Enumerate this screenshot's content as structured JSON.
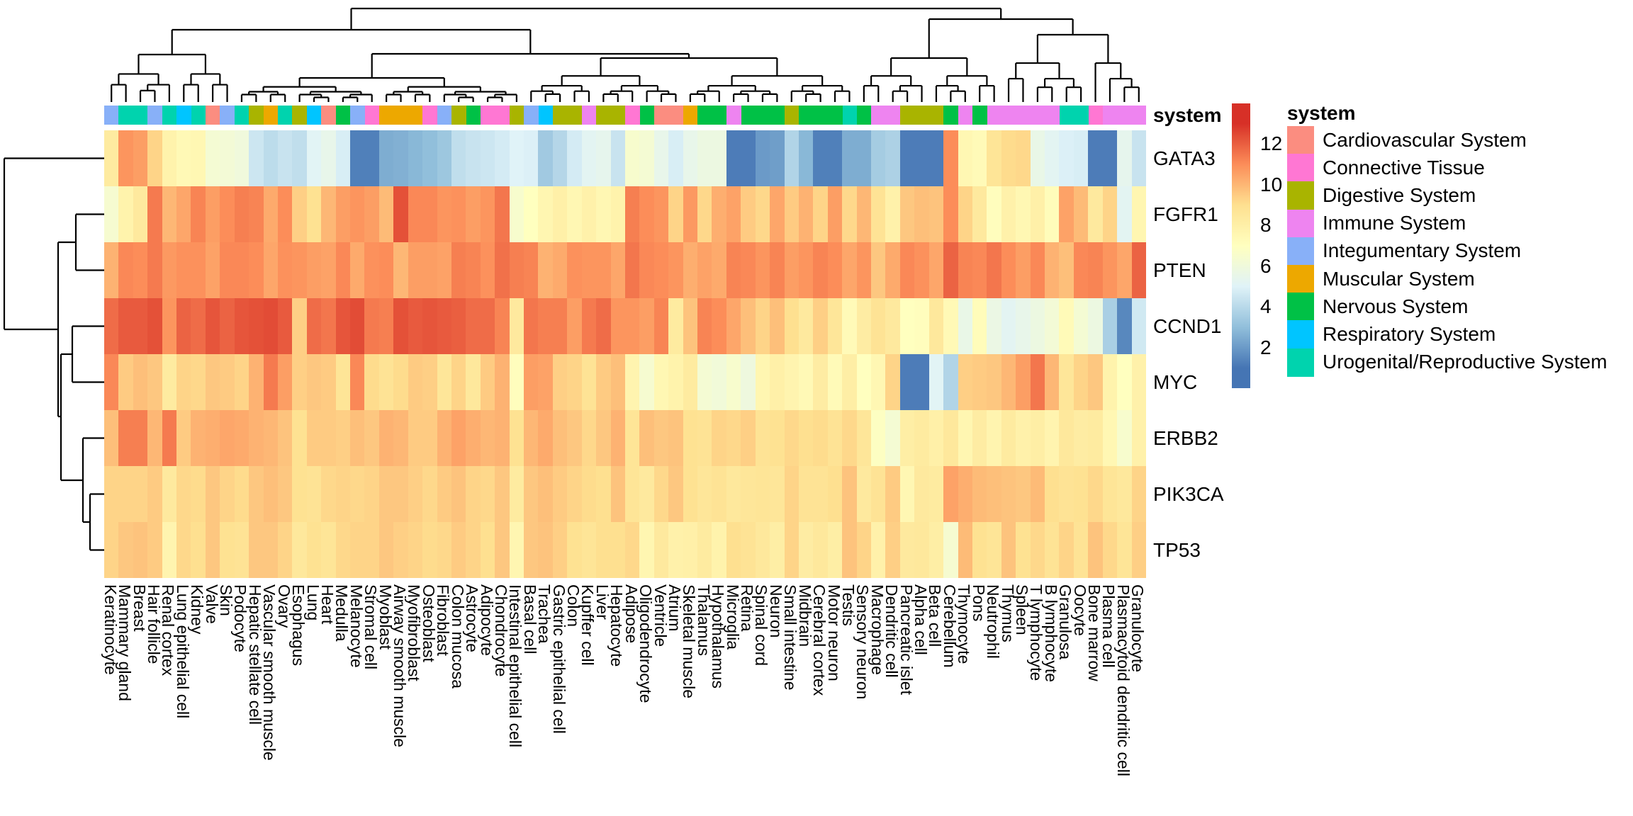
{
  "annotation_row_label": "system",
  "legend": {
    "title": "system",
    "items": [
      {
        "key": "cardio",
        "label": "Cardiovascular System",
        "color": "#FB8D80"
      },
      {
        "key": "connective",
        "label": "Connective Tissue",
        "color": "#FF77D3"
      },
      {
        "key": "digestive",
        "label": "Digestive System",
        "color": "#A9B400"
      },
      {
        "key": "immune",
        "label": "Immune System",
        "color": "#EE84F0"
      },
      {
        "key": "integument",
        "label": "Integumentary System",
        "color": "#88B0F8"
      },
      {
        "key": "muscular",
        "label": "Muscular System",
        "color": "#EDA800"
      },
      {
        "key": "nervous",
        "label": "Nervous System",
        "color": "#00C146"
      },
      {
        "key": "respiratory",
        "label": "Respiratory System",
        "color": "#00C5FF"
      },
      {
        "key": "urogenital",
        "label": "Urogenital/Reproductive System",
        "color": "#00D3AE"
      }
    ]
  },
  "colorbar": {
    "ticks": [
      {
        "label": "12",
        "value": 12
      },
      {
        "label": "10",
        "value": 10
      },
      {
        "label": "8",
        "value": 8
      },
      {
        "label": "6",
        "value": 6
      },
      {
        "label": "4",
        "value": 4
      },
      {
        "label": "2",
        "value": 2
      }
    ],
    "domain_min": 0,
    "domain_max": 14,
    "palette_stops": [
      "#4575B4",
      "#91BFDB",
      "#E0F3F8",
      "#FFFFBF",
      "#FEE090",
      "#FC8D59",
      "#D73027"
    ],
    "palette_values": [
      1,
      3,
      5,
      7,
      9,
      11,
      13
    ]
  },
  "chart_data": {
    "type": "heatmap",
    "genes": [
      "GATA3",
      "FGFR1",
      "PTEN",
      "CCND1",
      "MYC",
      "ERBB2",
      "PIK3CA",
      "TP53"
    ],
    "columns": [
      {
        "label": "Keratinocyte",
        "system": "integument"
      },
      {
        "label": "Mammary gland",
        "system": "urogenital"
      },
      {
        "label": "Breast",
        "system": "urogenital"
      },
      {
        "label": "Hair follicle",
        "system": "integument"
      },
      {
        "label": "Renal cortex",
        "system": "urogenital"
      },
      {
        "label": "Lung epithelial cell",
        "system": "respiratory"
      },
      {
        "label": "Kidney",
        "system": "urogenital"
      },
      {
        "label": "Valve",
        "system": "cardio"
      },
      {
        "label": "Skin",
        "system": "integument"
      },
      {
        "label": "Podocyte",
        "system": "urogenital"
      },
      {
        "label": "Hepatic stellate cell",
        "system": "digestive"
      },
      {
        "label": "Vascular smooth muscle",
        "system": "muscular"
      },
      {
        "label": "Ovary",
        "system": "urogenital"
      },
      {
        "label": "Esophagus",
        "system": "digestive"
      },
      {
        "label": "Lung",
        "system": "respiratory"
      },
      {
        "label": "Heart",
        "system": "cardio"
      },
      {
        "label": "Medulla",
        "system": "nervous"
      },
      {
        "label": "Melanocyte",
        "system": "integument"
      },
      {
        "label": "Stromal cell",
        "system": "connective"
      },
      {
        "label": "Myoblast",
        "system": "muscular"
      },
      {
        "label": "Airway smooth muscle",
        "system": "muscular"
      },
      {
        "label": "Myofibroblast",
        "system": "muscular"
      },
      {
        "label": "Osteoblast",
        "system": "connective"
      },
      {
        "label": "Fibroblast",
        "system": "integument"
      },
      {
        "label": "Colon mucosa",
        "system": "digestive"
      },
      {
        "label": "Astrocyte",
        "system": "nervous"
      },
      {
        "label": "Adipocyte",
        "system": "connective"
      },
      {
        "label": "Chondrocyte",
        "system": "connective"
      },
      {
        "label": "Intestinal epithelial cell",
        "system": "digestive"
      },
      {
        "label": "Basal cell",
        "system": "integument"
      },
      {
        "label": "Trachea",
        "system": "respiratory"
      },
      {
        "label": "Gastric epithelial cell",
        "system": "digestive"
      },
      {
        "label": "Colon",
        "system": "digestive"
      },
      {
        "label": "Kupffer cell",
        "system": "immune"
      },
      {
        "label": "Liver",
        "system": "digestive"
      },
      {
        "label": "Hepatocyte",
        "system": "digestive"
      },
      {
        "label": "Adipose",
        "system": "connective"
      },
      {
        "label": "Oligodendrocyte",
        "system": "nervous"
      },
      {
        "label": "Ventricle",
        "system": "cardio"
      },
      {
        "label": "Atrium",
        "system": "cardio"
      },
      {
        "label": "Skeletal muscle",
        "system": "muscular"
      },
      {
        "label": "Thalamus",
        "system": "nervous"
      },
      {
        "label": "Hypothalamus",
        "system": "nervous"
      },
      {
        "label": "Microglia",
        "system": "immune"
      },
      {
        "label": "Retina",
        "system": "nervous"
      },
      {
        "label": "Spinal cord",
        "system": "nervous"
      },
      {
        "label": "Neuron",
        "system": "nervous"
      },
      {
        "label": "Small intestine",
        "system": "digestive"
      },
      {
        "label": "Midbrain",
        "system": "nervous"
      },
      {
        "label": "Cerebral cortex",
        "system": "nervous"
      },
      {
        "label": "Motor neuron",
        "system": "nervous"
      },
      {
        "label": "Testis",
        "system": "urogenital"
      },
      {
        "label": "Sensory neuron",
        "system": "nervous"
      },
      {
        "label": "Macrophage",
        "system": "immune"
      },
      {
        "label": "Dendritic cell",
        "system": "immune"
      },
      {
        "label": "Pancreatic islet",
        "system": "digestive"
      },
      {
        "label": "Alpha cell",
        "system": "digestive"
      },
      {
        "label": "Beta cell",
        "system": "digestive"
      },
      {
        "label": "Cerebellum",
        "system": "nervous"
      },
      {
        "label": "Thymocyte",
        "system": "immune"
      },
      {
        "label": "Pons",
        "system": "nervous"
      },
      {
        "label": "Neutrophil",
        "system": "immune"
      },
      {
        "label": "Thymus",
        "system": "immune"
      },
      {
        "label": "Spleen",
        "system": "immune"
      },
      {
        "label": "T lymphocyte",
        "system": "immune"
      },
      {
        "label": "B lymphocyte",
        "system": "immune"
      },
      {
        "label": "Granulosa",
        "system": "urogenital"
      },
      {
        "label": "Oocyte",
        "system": "urogenital"
      },
      {
        "label": "Bone marrow",
        "system": "connective"
      },
      {
        "label": "Plasma cell",
        "system": "immune"
      },
      {
        "label": "Plasmacytoid dendritic cell",
        "system": "immune"
      },
      {
        "label": "Granulocyte",
        "system": "immune"
      }
    ],
    "values": [
      [
        8.3,
        10.8,
        10.6,
        9.3,
        7.8,
        7.4,
        7.5,
        6.3,
        6.2,
        6.0,
        4.5,
        4.1,
        4.4,
        4.2,
        5.1,
        5.5,
        4.8,
        1.3,
        1.3,
        2.5,
        2.6,
        2.8,
        3.0,
        3.3,
        4.2,
        4.4,
        4.5,
        4.7,
        5.0,
        4.9,
        3.4,
        3.9,
        4.7,
        5.2,
        5.4,
        4.4,
        6.5,
        6.3,
        5.5,
        4.8,
        5.5,
        5.8,
        5.8,
        1.2,
        1.2,
        2.0,
        2.1,
        3.8,
        2.8,
        1.3,
        1.3,
        2.5,
        2.5,
        3.5,
        3.7,
        1.2,
        1.2,
        1.2,
        11.0,
        7.5,
        7.3,
        8.7,
        9.1,
        9.2,
        5.6,
        5.2,
        4.9,
        4.8,
        1.2,
        1.2,
        5.4,
        4.4
      ],
      [
        6.4,
        7.8,
        8.4,
        11.4,
        10.0,
        10.4,
        11.2,
        10.6,
        11.0,
        11.3,
        11.2,
        10.3,
        11.0,
        9.4,
        8.9,
        10.0,
        10.6,
        10.8,
        10.6,
        9.9,
        12.3,
        11.1,
        11.1,
        10.8,
        10.9,
        10.6,
        10.8,
        11.5,
        6.5,
        7.0,
        7.6,
        8.0,
        7.5,
        7.9,
        7.5,
        7.8,
        11.3,
        11.0,
        10.8,
        9.3,
        10.7,
        9.2,
        10.2,
        10.5,
        9.5,
        9.2,
        10.4,
        9.5,
        10.1,
        9.3,
        10.6,
        9.2,
        10.0,
        8.8,
        7.9,
        9.6,
        9.8,
        9.7,
        11.0,
        9.3,
        8.4,
        7.1,
        7.9,
        7.5,
        8.0,
        7.2,
        10.5,
        9.9,
        8.4,
        9.3,
        5.2,
        7.6
      ],
      [
        10.1,
        11.1,
        11.0,
        11.4,
        10.7,
        10.9,
        10.9,
        10.5,
        11.1,
        11.1,
        11.0,
        10.4,
        10.9,
        10.8,
        10.6,
        10.5,
        11.1,
        10.3,
        10.9,
        11.0,
        10.0,
        10.6,
        10.6,
        10.5,
        11.3,
        11.2,
        10.9,
        11.6,
        11.3,
        11.2,
        10.1,
        10.3,
        10.9,
        10.8,
        10.8,
        10.4,
        11.5,
        11.1,
        11.0,
        10.8,
        10.2,
        10.5,
        10.3,
        11.2,
        11.1,
        10.8,
        11.2,
        10.6,
        10.8,
        11.2,
        11.0,
        10.4,
        10.8,
        9.6,
        10.3,
        11.1,
        10.9,
        10.4,
        11.9,
        11.2,
        11.1,
        11.5,
        11.0,
        10.6,
        11.1,
        10.1,
        9.8,
        11.1,
        11.2,
        10.8,
        10.4,
        11.9
      ],
      [
        11.7,
        12.1,
        12.1,
        12.3,
        10.8,
        11.9,
        11.7,
        12.2,
        11.9,
        12.2,
        12.3,
        12.4,
        12.1,
        9.4,
        11.7,
        11.5,
        12.2,
        12.4,
        11.4,
        11.3,
        12.3,
        12.1,
        12.2,
        12.1,
        12.0,
        11.7,
        11.7,
        11.2,
        8.4,
        11.5,
        11.3,
        11.3,
        10.6,
        11.4,
        11.7,
        10.8,
        10.8,
        10.6,
        11.2,
        8.3,
        9.7,
        11.2,
        11.0,
        10.4,
        9.8,
        9.3,
        9.8,
        9.0,
        8.4,
        9.4,
        8.6,
        7.3,
        8.2,
        8.8,
        8.4,
        7.0,
        7.1,
        8.5,
        7.4,
        5.6,
        7.2,
        5.7,
        5.2,
        5.5,
        5.8,
        6.2,
        7.3,
        6.3,
        5.8,
        3.6,
        1.5,
        4.6
      ],
      [
        11.1,
        9.5,
        9.8,
        9.6,
        8.3,
        9.3,
        9.2,
        9.6,
        9.5,
        9.3,
        10.1,
        11.4,
        10.6,
        9.4,
        9.6,
        9.5,
        8.7,
        11.1,
        9.1,
        8.8,
        9.1,
        9.5,
        9.4,
        8.6,
        9.3,
        8.5,
        9.5,
        10.1,
        7.1,
        10.6,
        10.5,
        9.4,
        9.3,
        8.8,
        9.5,
        9.8,
        7.7,
        6.4,
        7.5,
        7.8,
        8.3,
        6.3,
        6.1,
        6.5,
        5.9,
        7.6,
        8.0,
        7.7,
        7.4,
        8.2,
        7.3,
        8.1,
        7.0,
        7.5,
        9.3,
        1.2,
        1.2,
        5.1,
        3.8,
        9.4,
        9.5,
        9.6,
        10.0,
        10.6,
        11.5,
        10.0,
        8.6,
        9.3,
        9.6,
        7.8,
        7.0,
        7.9
      ],
      [
        9.8,
        11.3,
        11.3,
        10.0,
        11.4,
        9.5,
        10.1,
        10.2,
        10.4,
        10.3,
        10.1,
        10.0,
        9.7,
        8.9,
        9.5,
        9.5,
        9.4,
        9.8,
        9.6,
        10.1,
        10.0,
        9.5,
        9.5,
        10.1,
        10.5,
        10.2,
        10.0,
        10.1,
        8.9,
        10.0,
        10.3,
        9.8,
        9.6,
        9.2,
        9.6,
        10.1,
        8.7,
        9.8,
        9.6,
        9.7,
        8.9,
        8.8,
        9.3,
        9.2,
        9.4,
        8.8,
        8.9,
        9.2,
        9.0,
        9.1,
        8.8,
        9.2,
        8.6,
        6.9,
        6.3,
        8.1,
        8.3,
        8.0,
        8.5,
        7.6,
        8.2,
        7.7,
        8.3,
        7.9,
        8.1,
        7.7,
        8.5,
        8.2,
        8.3,
        7.5,
        6.5,
        7.9
      ],
      [
        9.3,
        9.3,
        9.3,
        9.5,
        8.4,
        9.2,
        9.1,
        9.6,
        9.3,
        9.1,
        9.6,
        9.8,
        9.6,
        8.9,
        8.8,
        9.2,
        9.3,
        9.2,
        9.3,
        9.6,
        9.6,
        9.4,
        9.2,
        9.5,
        9.7,
        9.3,
        9.2,
        9.6,
        8.3,
        9.6,
        9.8,
        9.5,
        9.3,
        9.1,
        9.0,
        9.7,
        8.7,
        8.4,
        9.2,
        9.6,
        8.9,
        8.6,
        8.8,
        8.5,
        8.6,
        8.7,
        8.6,
        9.3,
        8.8,
        8.8,
        9.0,
        9.7,
        8.4,
        8.8,
        9.5,
        7.5,
        8.4,
        8.3,
        10.5,
        10.2,
        9.9,
        9.8,
        9.7,
        9.6,
        9.9,
        9.0,
        8.8,
        8.9,
        9.2,
        8.7,
        8.5,
        9.3
      ],
      [
        9.3,
        9.6,
        9.7,
        9.5,
        7.7,
        9.2,
        9.0,
        9.6,
        8.9,
        8.8,
        9.6,
        9.6,
        9.3,
        8.5,
        8.9,
        8.7,
        9.2,
        9.3,
        9.3,
        9.6,
        9.4,
        9.3,
        9.1,
        9.2,
        9.5,
        9.3,
        9.0,
        9.6,
        7.6,
        9.6,
        9.7,
        9.4,
        8.9,
        8.7,
        9.0,
        9.0,
        9.2,
        7.6,
        8.4,
        7.9,
        8.0,
        8.3,
        7.8,
        9.0,
        8.8,
        8.5,
        8.1,
        9.3,
        8.2,
        8.5,
        8.1,
        9.7,
        9.3,
        7.9,
        9.4,
        8.4,
        8.5,
        8.1,
        6.4,
        9.9,
        8.9,
        8.7,
        9.7,
        8.9,
        9.2,
        8.8,
        9.3,
        8.8,
        9.7,
        9.2,
        8.7,
        9.4
      ]
    ]
  }
}
